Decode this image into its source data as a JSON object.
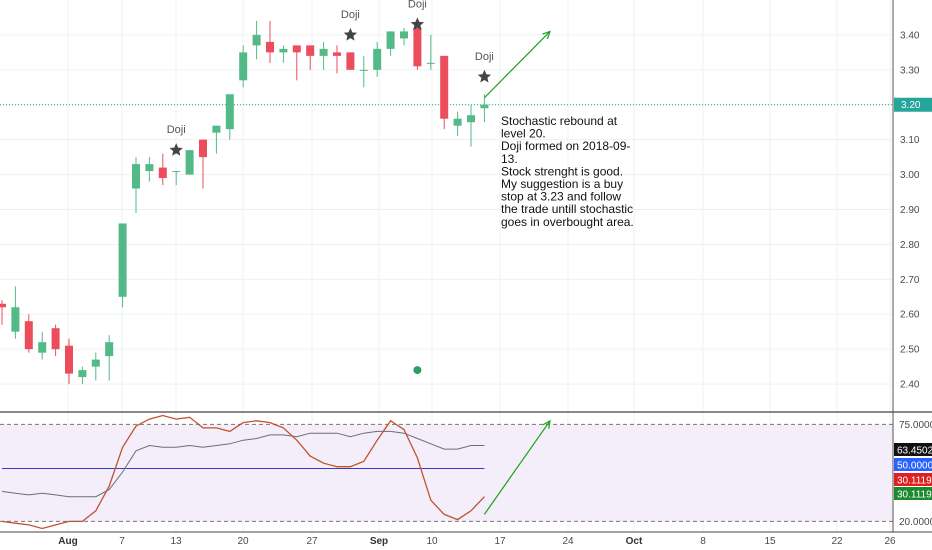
{
  "chart_data": {
    "type": "candlestick",
    "price_axis": {
      "ticks": [
        2.4,
        2.5,
        2.6,
        2.7,
        2.8,
        2.9,
        3.0,
        3.1,
        3.2,
        3.3,
        3.4
      ],
      "ylim": [
        2.32,
        3.5
      ]
    },
    "x_axis": {
      "ticks": [
        "Aug",
        "7",
        "13",
        "20",
        "27",
        "Sep",
        "10",
        "17",
        "24",
        "Oct",
        "8",
        "15",
        "22",
        "26"
      ],
      "bold_ticks": [
        "Aug",
        "Sep",
        "Oct"
      ]
    },
    "current_price": {
      "label": "3.20",
      "value": 3.2,
      "color": "#26a69a"
    },
    "candles": [
      {
        "o": 2.63,
        "h": 2.64,
        "l": 2.57,
        "c": 2.62
      },
      {
        "o": 2.55,
        "h": 2.68,
        "l": 2.53,
        "c": 2.62
      },
      {
        "o": 2.58,
        "h": 2.6,
        "l": 2.49,
        "c": 2.5
      },
      {
        "o": 2.49,
        "h": 2.55,
        "l": 2.47,
        "c": 2.52
      },
      {
        "o": 2.56,
        "h": 2.57,
        "l": 2.48,
        "c": 2.5
      },
      {
        "o": 2.51,
        "h": 2.53,
        "l": 2.4,
        "c": 2.43
      },
      {
        "o": 2.42,
        "h": 2.45,
        "l": 2.4,
        "c": 2.44
      },
      {
        "o": 2.45,
        "h": 2.49,
        "l": 2.41,
        "c": 2.47
      },
      {
        "o": 2.48,
        "h": 2.54,
        "l": 2.41,
        "c": 2.52
      },
      {
        "o": 2.65,
        "h": 2.86,
        "l": 2.62,
        "c": 2.86
      },
      {
        "o": 2.96,
        "h": 3.05,
        "l": 2.89,
        "c": 3.03
      },
      {
        "o": 3.01,
        "h": 3.05,
        "l": 2.98,
        "c": 3.03
      },
      {
        "o": 3.02,
        "h": 3.06,
        "l": 2.97,
        "c": 2.99
      },
      {
        "o": 3.01,
        "h": 3.01,
        "l": 2.97,
        "c": 3.01
      },
      {
        "o": 3.0,
        "h": 3.07,
        "l": 3.0,
        "c": 3.07
      },
      {
        "o": 3.1,
        "h": 3.1,
        "l": 2.96,
        "c": 3.05
      },
      {
        "o": 3.12,
        "h": 3.14,
        "l": 3.06,
        "c": 3.14
      },
      {
        "o": 3.13,
        "h": 3.23,
        "l": 3.1,
        "c": 3.23
      },
      {
        "o": 3.27,
        "h": 3.37,
        "l": 3.25,
        "c": 3.35
      },
      {
        "o": 3.37,
        "h": 3.44,
        "l": 3.33,
        "c": 3.4
      },
      {
        "o": 3.38,
        "h": 3.44,
        "l": 3.32,
        "c": 3.35
      },
      {
        "o": 3.35,
        "h": 3.37,
        "l": 3.32,
        "c": 3.36
      },
      {
        "o": 3.37,
        "h": 3.37,
        "l": 3.27,
        "c": 3.35
      },
      {
        "o": 3.37,
        "h": 3.37,
        "l": 3.3,
        "c": 3.34
      },
      {
        "o": 3.34,
        "h": 3.38,
        "l": 3.3,
        "c": 3.36
      },
      {
        "o": 3.35,
        "h": 3.37,
        "l": 3.29,
        "c": 3.34
      },
      {
        "o": 3.35,
        "h": 3.35,
        "l": 3.3,
        "c": 3.3
      },
      {
        "o": 3.3,
        "h": 3.34,
        "l": 3.25,
        "c": 3.3
      },
      {
        "o": 3.3,
        "h": 3.38,
        "l": 3.28,
        "c": 3.36
      },
      {
        "o": 3.36,
        "h": 3.41,
        "l": 3.34,
        "c": 3.41
      },
      {
        "o": 3.39,
        "h": 3.42,
        "l": 3.37,
        "c": 3.41
      },
      {
        "o": 3.42,
        "h": 3.42,
        "l": 3.3,
        "c": 3.31
      },
      {
        "o": 3.32,
        "h": 3.4,
        "l": 3.3,
        "c": 3.32
      },
      {
        "o": 3.34,
        "h": 3.34,
        "l": 3.13,
        "c": 3.16
      },
      {
        "o": 3.14,
        "h": 3.18,
        "l": 3.11,
        "c": 3.16
      },
      {
        "o": 3.15,
        "h": 3.2,
        "l": 3.08,
        "c": 3.17
      },
      {
        "o": 3.19,
        "h": 3.23,
        "l": 3.15,
        "c": 3.2
      }
    ],
    "colors": {
      "up": "#53b987",
      "down": "#eb4d5c",
      "indicator_band": "#f3eefa",
      "k_line": "#c0532e",
      "d_line": "#6e6e6e",
      "hline": "#3a3ac8"
    },
    "annotations": [
      {
        "type": "doji",
        "label": "Doji",
        "x_index": 13,
        "y": 3.07
      },
      {
        "type": "doji",
        "label": "Doji",
        "x_index": 26,
        "y": 3.4
      },
      {
        "type": "doji",
        "label": "Doji",
        "x_index": 31,
        "y": 3.43
      },
      {
        "type": "doji",
        "label": "Doji",
        "x_index": 36,
        "y": 3.28
      }
    ],
    "note": "Stochastic rebound at level 20.\nDoji formed on 2018-09-13.\nStock strenght is good.\nMy suggestion is a buy stop at 3.23 and follow the trade untill stochastic goes in overbought area.",
    "stochastic": {
      "levels": {
        "upper": 75,
        "lower": 20
      },
      "ylim": [
        14,
        82
      ],
      "k": [
        20,
        19,
        18,
        16,
        18,
        20,
        20,
        26,
        40,
        62,
        74,
        78,
        80,
        78,
        79,
        73,
        73,
        71,
        76,
        77,
        76,
        73,
        66,
        57,
        53,
        51,
        51,
        54,
        66,
        77,
        72,
        56,
        32,
        24,
        21,
        26,
        34
      ],
      "d": [
        37,
        36,
        35,
        36,
        35,
        34,
        34,
        34,
        38,
        48,
        60,
        63,
        62,
        62,
        63,
        62,
        63,
        64,
        66,
        67,
        69,
        69,
        68,
        70,
        70,
        70,
        68,
        70,
        71,
        71,
        70,
        67,
        64,
        61,
        61,
        63,
        63
      ],
      "hline_value": 50,
      "badges": [
        {
          "label": "63.4502",
          "value": 63.45,
          "color": "#111111"
        },
        {
          "label": "50.0000",
          "value": 50.0,
          "color": "#2962ff"
        },
        {
          "label": "30.1119",
          "value": 30.11,
          "color": "#e02020"
        },
        {
          "label": "30.1119",
          "value": 30.11,
          "color": "#1b8a2e"
        }
      ],
      "level_labels": [
        "75.0000",
        "20.0000"
      ]
    },
    "arrows": [
      {
        "from_index": 36,
        "from_y": 3.22,
        "to_index": 40,
        "to_y": 3.41,
        "pane": "price",
        "color": "#1aa31a"
      },
      {
        "from_index": 36,
        "from_y": 24,
        "to_index": 40,
        "to_y": 77,
        "pane": "indicator",
        "color": "#1aa31a"
      }
    ],
    "dot": {
      "x_index": 31,
      "y": 2.44,
      "color": "#2e9e5e"
    }
  }
}
